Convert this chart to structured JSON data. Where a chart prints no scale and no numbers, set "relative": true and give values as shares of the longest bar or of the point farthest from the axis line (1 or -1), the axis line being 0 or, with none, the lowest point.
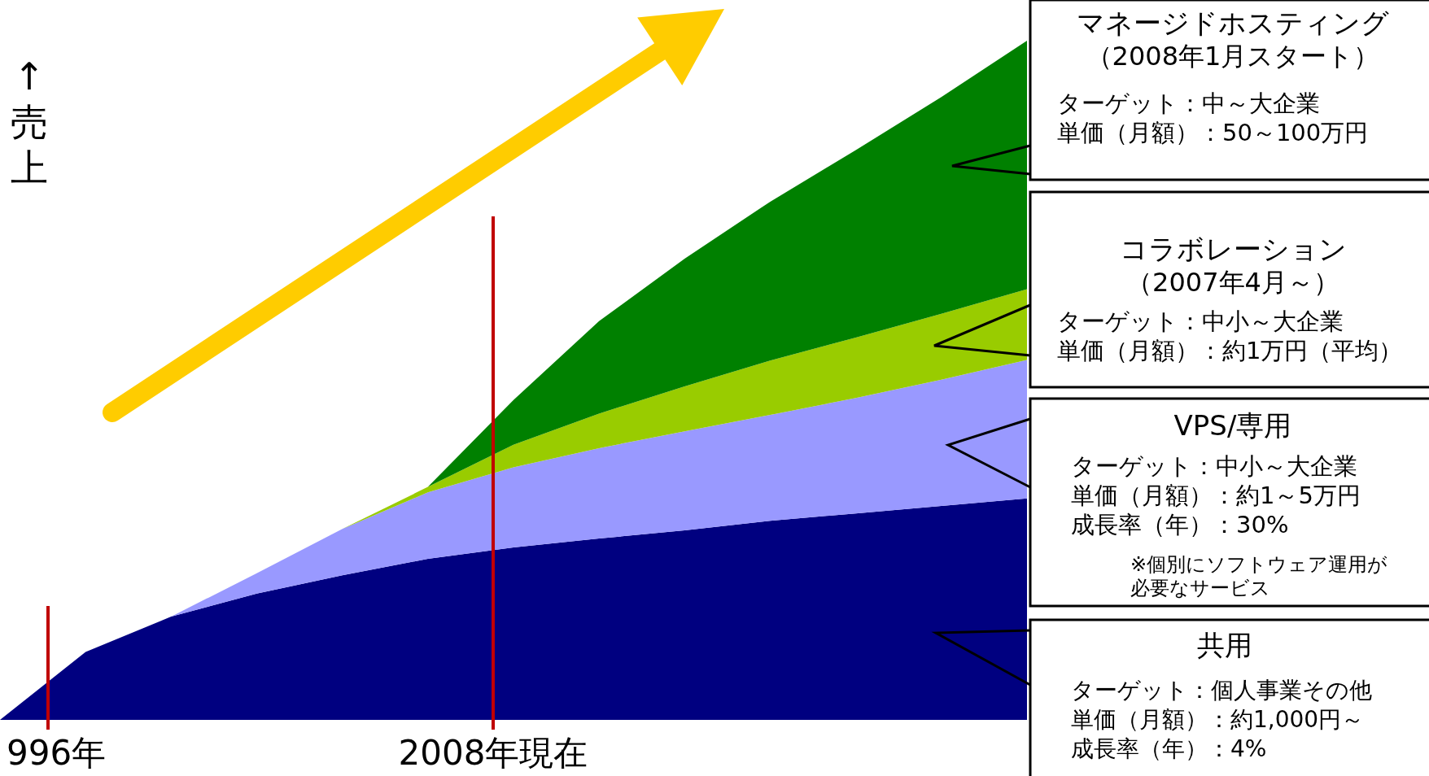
{
  "chart_data": {
    "type": "area",
    "stacked": true,
    "relative": true,
    "ylabel": "↑売上",
    "categories": [
      null,
      null,
      null,
      null,
      null,
      null,
      null,
      null,
      null,
      null,
      null,
      null,
      null
    ],
    "series": [
      {
        "name": "共用",
        "color": "#000080",
        "values": [
          0,
          0.1,
          0.152,
          0.186,
          0.213,
          0.237,
          0.254,
          0.267,
          0.279,
          0.293,
          0.304,
          0.315,
          0.326
        ]
      },
      {
        "name": "VPS/専用",
        "color": "#9999ff",
        "values": [
          0,
          0,
          0,
          0.03,
          0.068,
          0.098,
          0.118,
          0.133,
          0.146,
          0.156,
          0.17,
          0.186,
          0.204
        ]
      },
      {
        "name": "コラボレーション",
        "color": "#99cc00",
        "values": [
          0,
          0,
          0,
          0,
          0,
          0.008,
          0.033,
          0.051,
          0.066,
          0.08,
          0.089,
          0.097,
          0.104
        ]
      },
      {
        "name": "マネージドホスティング",
        "color": "#008000",
        "values": [
          0,
          0,
          0,
          0,
          0,
          0,
          0.066,
          0.136,
          0.188,
          0.234,
          0.276,
          0.319,
          0.366
        ]
      }
    ],
    "annotations": [
      "（2008年1月スタート）",
      "ターゲット：中～大企業",
      "単価（月額）：50～100万円",
      "（2007年4月～）",
      "ターゲット：中小～大企業",
      "単価（月額）：約1万円（平均）",
      "ターゲット：中小～大企業",
      "単価（月額）：約1～5万円",
      "成長率（年）：30%",
      "※個別にソフトウェア運用が",
      "必要なサービス",
      "ターゲット：個人事業その他",
      "単価（月額）：約1,000円～",
      "成長率（年）：4%",
      "996年",
      "2008年現在"
    ]
  }
}
